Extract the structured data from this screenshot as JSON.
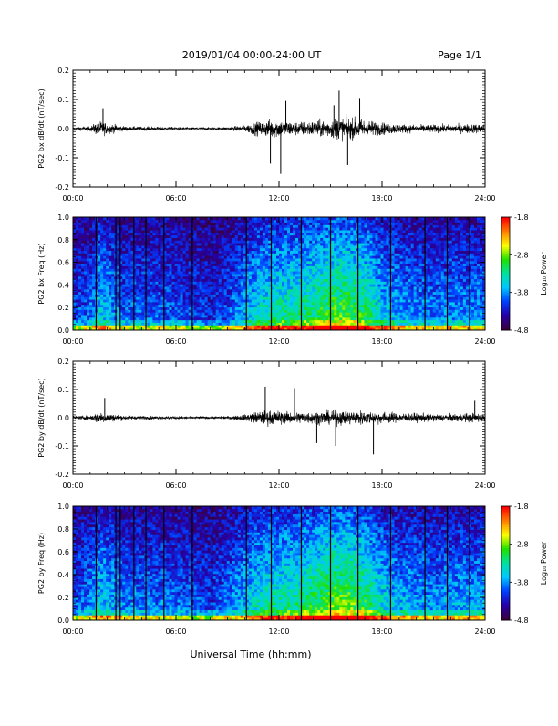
{
  "header": {
    "title": "2019/01/04  00:00-24:00 UT",
    "page": "Page 1/1"
  },
  "footer": {
    "xlabel": "Universal Time (hh:mm)"
  },
  "chart_data": [
    {
      "type": "line",
      "ylabel": "PG2 bx dB/dt (nT/sec)",
      "xlim": [
        0,
        24
      ],
      "ylim": [
        -0.2,
        0.2
      ],
      "x_ticks": [
        "00:00",
        "06:00",
        "12:00",
        "18:00",
        "24:00"
      ],
      "y_ticks": [
        "-0.2",
        "-0.1",
        "0.0",
        "0.1",
        "0.2"
      ],
      "envelope": {
        "hours": [
          0,
          1,
          1.5,
          2,
          3,
          4,
          5,
          6,
          7,
          8,
          9,
          10,
          10.5,
          11,
          11.5,
          12,
          12.5,
          13,
          14,
          15,
          15.5,
          16,
          16.5,
          17,
          17.5,
          18,
          18.5,
          19,
          20,
          21,
          22,
          23,
          24
        ],
        "amplitude": [
          0.01,
          0.015,
          0.05,
          0.035,
          0.015,
          0.012,
          0.012,
          0.01,
          0.008,
          0.008,
          0.01,
          0.02,
          0.04,
          0.045,
          0.06,
          0.06,
          0.05,
          0.045,
          0.05,
          0.06,
          0.07,
          0.065,
          0.07,
          0.06,
          0.05,
          0.04,
          0.035,
          0.03,
          0.025,
          0.025,
          0.025,
          0.03,
          0.03
        ]
      },
      "spikes": [
        {
          "x": 1.75,
          "y": 0.07
        },
        {
          "x": 12.1,
          "y": -0.155
        },
        {
          "x": 12.4,
          "y": 0.095
        },
        {
          "x": 15.2,
          "y": 0.08
        },
        {
          "x": 15.5,
          "y": 0.13
        },
        {
          "x": 16.0,
          "y": -0.125
        },
        {
          "x": 16.7,
          "y": 0.105
        },
        {
          "x": 11.5,
          "y": -0.12
        }
      ]
    },
    {
      "type": "heatmap",
      "ylabel": "PG2 bx Freq (Hz)",
      "xlim": [
        0,
        24
      ],
      "ylim": [
        0,
        1.0
      ],
      "x_ticks": [
        "00:00",
        "06:00",
        "12:00",
        "18:00",
        "24:00"
      ],
      "y_ticks": [
        "0.0",
        "0.2",
        "0.4",
        "0.6",
        "0.8",
        "1.0"
      ],
      "colorbar": {
        "label": "Log₁₀ Power",
        "range": [
          -4.8,
          -1.8
        ],
        "ticks": [
          "-1.8",
          "-2.8",
          "-3.8",
          "-4.8"
        ],
        "colors": [
          "#3a003c",
          "#2500a8",
          "#0040ff",
          "#00c8ff",
          "#00e0a0",
          "#20e000",
          "#ffff00",
          "#ff8000",
          "#ff0000"
        ]
      },
      "activity": {
        "hours": [
          0,
          1,
          1.5,
          2,
          3,
          4,
          5,
          6,
          7,
          8,
          9,
          10,
          11,
          12,
          13,
          14,
          15,
          16,
          17,
          18,
          19,
          20,
          21,
          22,
          23,
          24
        ],
        "level": [
          0.25,
          0.3,
          0.45,
          0.4,
          0.3,
          0.3,
          0.3,
          0.28,
          0.25,
          0.22,
          0.28,
          0.4,
          0.5,
          0.55,
          0.55,
          0.6,
          0.68,
          0.68,
          0.62,
          0.45,
          0.38,
          0.35,
          0.33,
          0.35,
          0.35,
          0.35
        ]
      },
      "gaps_hours": [
        1.35,
        2.5,
        2.75,
        3.55,
        4.25,
        5.3,
        6.95,
        8.1,
        10.1,
        11.55,
        13.3,
        15.0,
        16.6,
        18.5,
        20.5,
        21.8,
        23.1
      ]
    },
    {
      "type": "line",
      "ylabel": "PG2 by dB/dt (nT/sec)",
      "xlim": [
        0,
        24
      ],
      "ylim": [
        -0.2,
        0.2
      ],
      "x_ticks": [
        "00:00",
        "06:00",
        "12:00",
        "18:00",
        "24:00"
      ],
      "y_ticks": [
        "-0.2",
        "-0.1",
        "0.0",
        "0.1",
        "0.2"
      ],
      "envelope": {
        "hours": [
          0,
          1,
          1.5,
          2,
          3,
          4,
          5,
          6,
          7,
          8,
          9,
          10,
          10.5,
          11,
          11.5,
          12,
          12.5,
          13,
          14,
          15,
          15.5,
          16,
          16.5,
          17,
          17.5,
          18,
          18.5,
          19,
          20,
          21,
          22,
          23,
          24
        ],
        "amplitude": [
          0.01,
          0.015,
          0.04,
          0.03,
          0.015,
          0.012,
          0.01,
          0.01,
          0.008,
          0.008,
          0.01,
          0.02,
          0.035,
          0.045,
          0.05,
          0.045,
          0.04,
          0.04,
          0.04,
          0.045,
          0.05,
          0.045,
          0.05,
          0.045,
          0.04,
          0.04,
          0.035,
          0.03,
          0.03,
          0.025,
          0.025,
          0.03,
          0.03
        ]
      },
      "spikes": [
        {
          "x": 1.85,
          "y": 0.07
        },
        {
          "x": 11.2,
          "y": 0.11
        },
        {
          "x": 12.9,
          "y": 0.105
        },
        {
          "x": 17.5,
          "y": -0.13
        },
        {
          "x": 15.3,
          "y": -0.1
        },
        {
          "x": 14.2,
          "y": -0.09
        },
        {
          "x": 23.4,
          "y": 0.06
        }
      ]
    },
    {
      "type": "heatmap",
      "ylabel": "PG2 by Freq (Hz)",
      "xlim": [
        0,
        24
      ],
      "ylim": [
        0,
        1.0
      ],
      "x_ticks": [
        "00:00",
        "06:00",
        "12:00",
        "18:00",
        "24:00"
      ],
      "y_ticks": [
        "0.0",
        "0.2",
        "0.4",
        "0.6",
        "0.8",
        "1.0"
      ],
      "colorbar": {
        "label": "Log₁₀ Power",
        "range": [
          -4.8,
          -1.8
        ],
        "ticks": [
          "-1.8",
          "-2.8",
          "-3.8",
          "-4.8"
        ],
        "colors": [
          "#3a003c",
          "#2500a8",
          "#0040ff",
          "#00c8ff",
          "#00e0a0",
          "#20e000",
          "#ffff00",
          "#ff8000",
          "#ff0000"
        ]
      },
      "activity": {
        "hours": [
          0,
          1,
          1.5,
          2,
          3,
          4,
          5,
          6,
          7,
          8,
          9,
          10,
          11,
          12,
          13,
          14,
          15,
          16,
          17,
          18,
          19,
          20,
          21,
          22,
          23,
          24
        ],
        "level": [
          0.28,
          0.33,
          0.45,
          0.42,
          0.33,
          0.32,
          0.32,
          0.3,
          0.28,
          0.25,
          0.32,
          0.42,
          0.52,
          0.55,
          0.57,
          0.62,
          0.7,
          0.7,
          0.63,
          0.48,
          0.4,
          0.38,
          0.36,
          0.38,
          0.38,
          0.38
        ]
      },
      "gaps_hours": [
        1.35,
        2.5,
        2.75,
        3.55,
        4.25,
        5.3,
        6.95,
        8.1,
        10.1,
        11.55,
        13.3,
        15.0,
        16.6,
        18.5,
        20.5,
        21.8,
        23.1
      ]
    }
  ]
}
